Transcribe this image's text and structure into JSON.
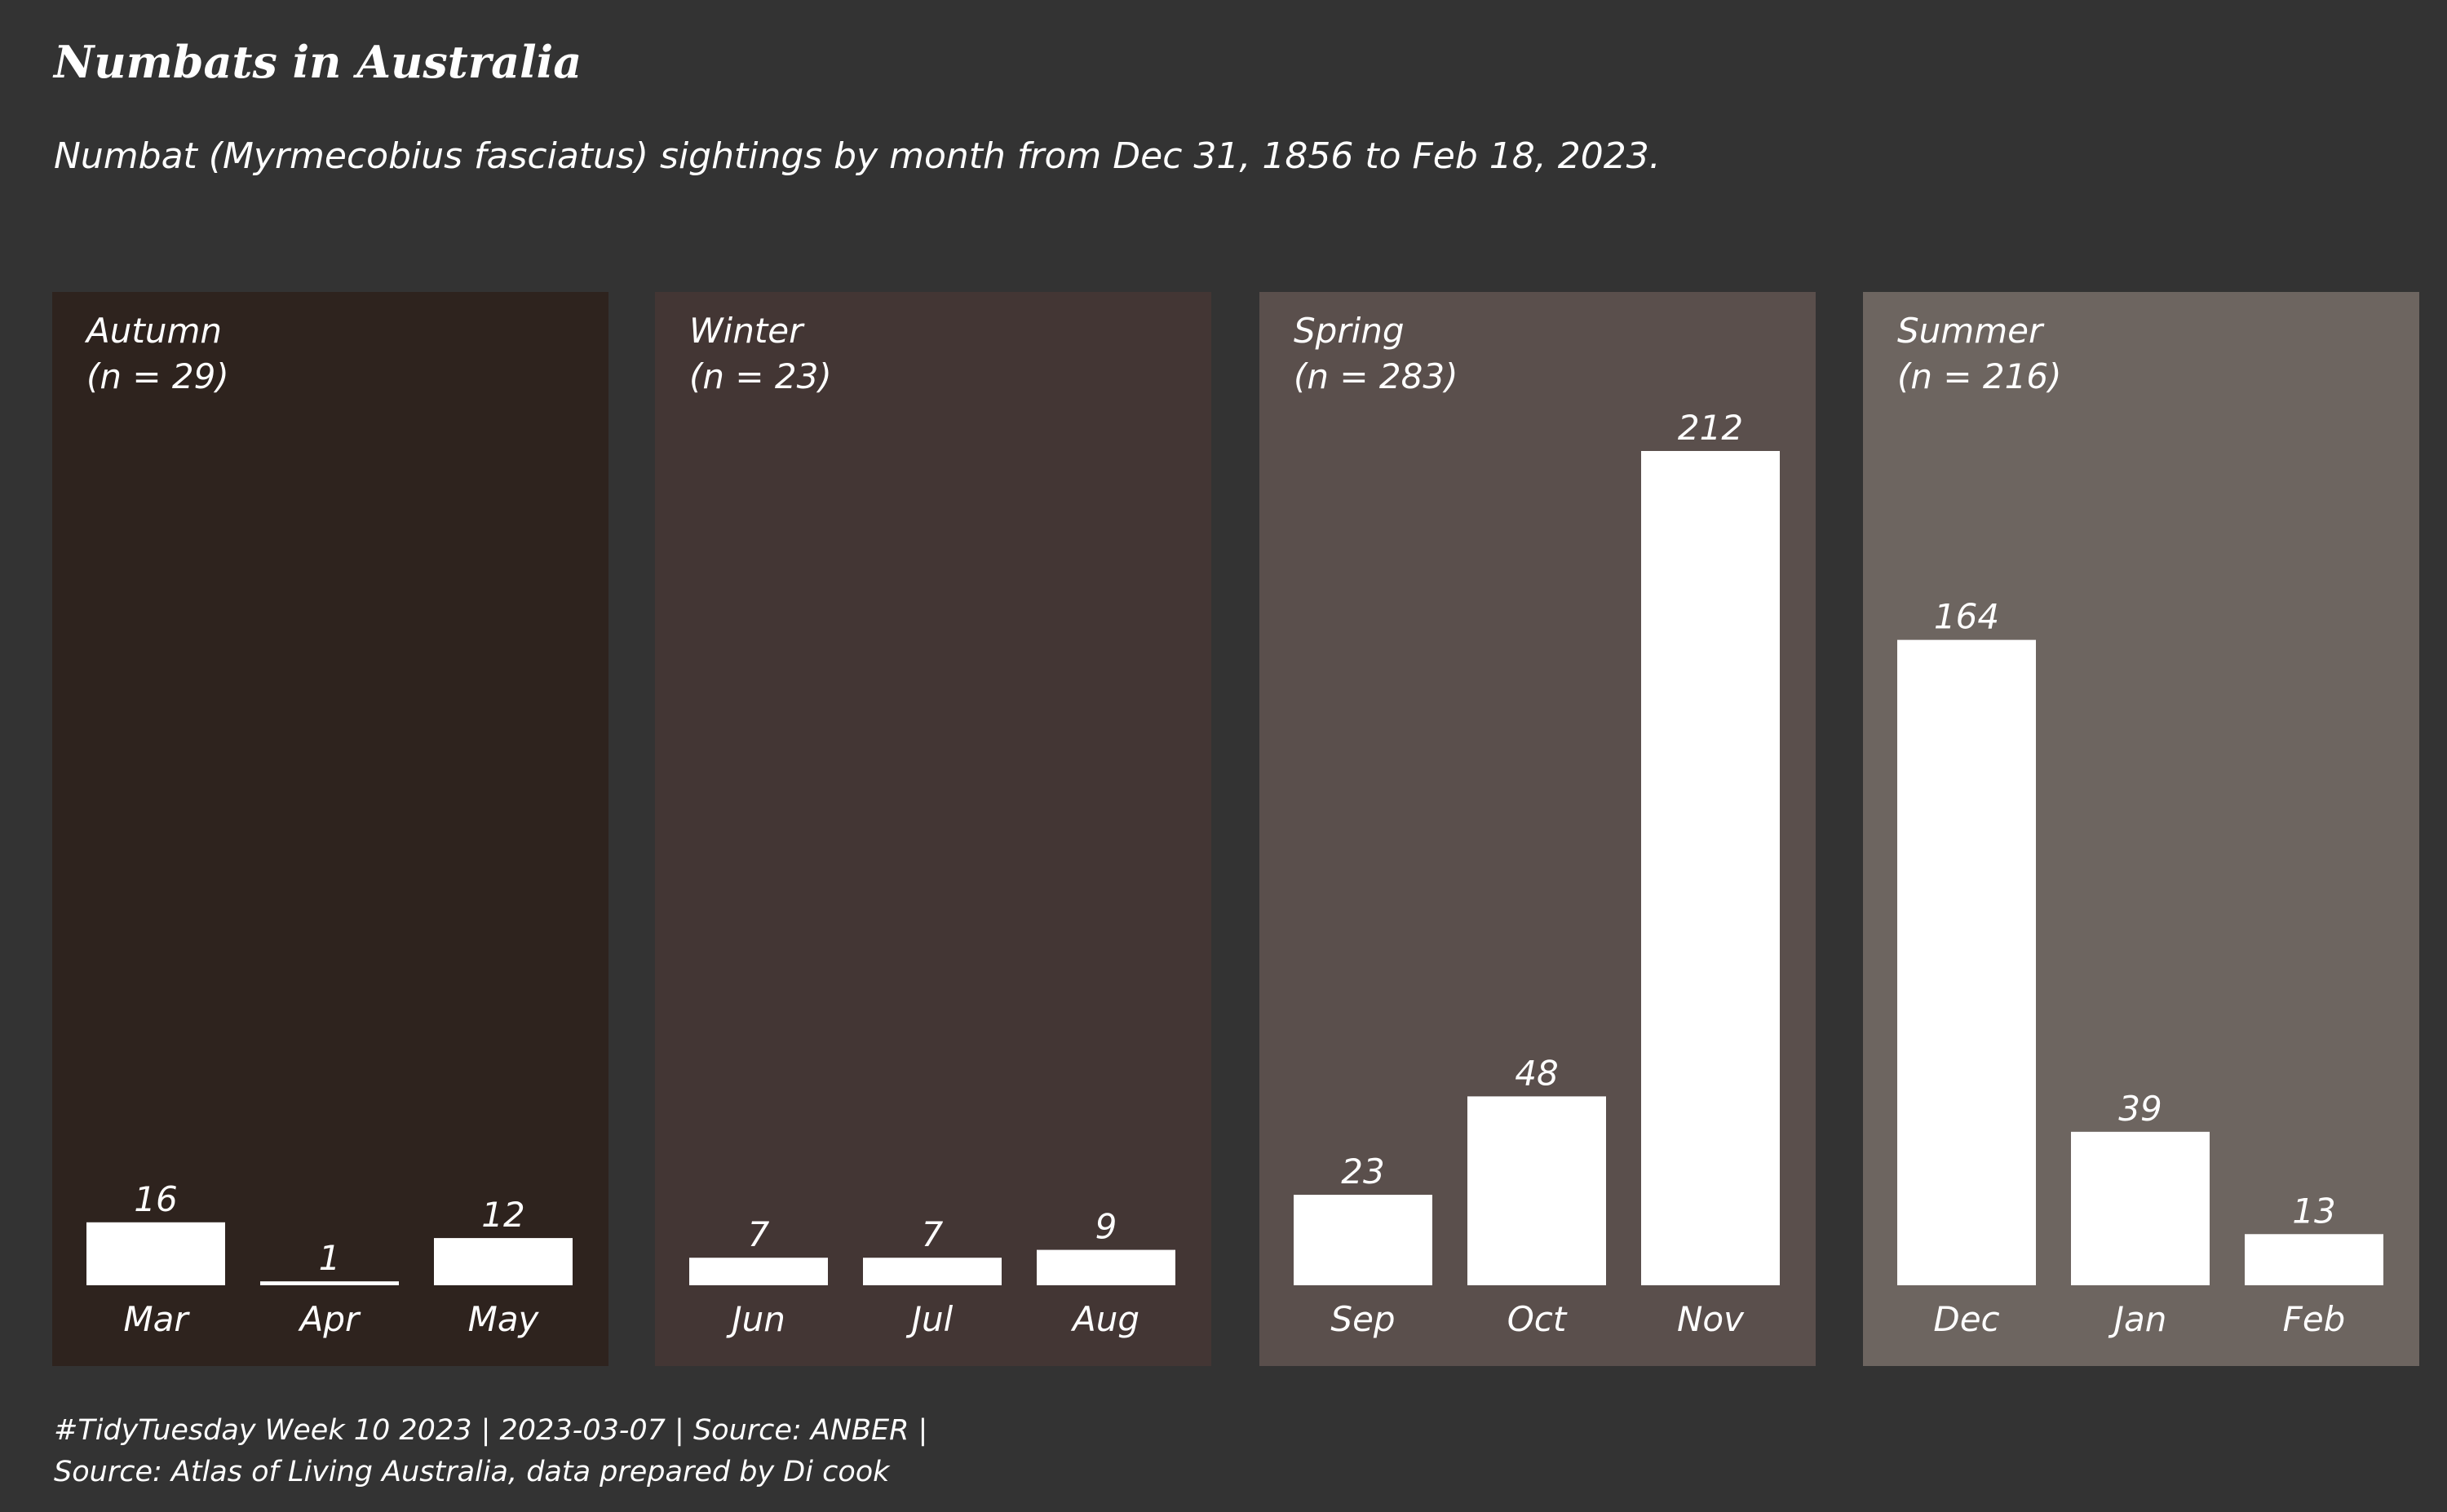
{
  "title": "Numbats in Australia",
  "subtitle": "Numbat (Myrmecobius fasciatus) sightings by month from Dec 31, 1856 to Feb 18, 2023.",
  "caption": {
    "line1": "#TidyTuesday Week 10 2023 | 2023-03-07 | Source: ANBER |",
    "line2": "Source: Atlas of Living Australia, data prepared by Di cook"
  },
  "colors": {
    "background": "#333333",
    "bar": "#ffffff",
    "text": "#ffffff"
  },
  "chart_data": {
    "type": "bar",
    "facet": "season",
    "grid": false,
    "legend": "none",
    "ylim": [
      0,
      212
    ],
    "panels": [
      {
        "name": "Autumn",
        "n_label": "(n = 29)",
        "color": "#2e231e",
        "categories": [
          "Mar",
          "Apr",
          "May"
        ],
        "values": [
          16,
          1,
          12
        ]
      },
      {
        "name": "Winter",
        "n_label": "(n = 23)",
        "color": "#433634",
        "categories": [
          "Jun",
          "Jul",
          "Aug"
        ],
        "values": [
          7,
          7,
          9
        ]
      },
      {
        "name": "Spring",
        "n_label": "(n = 283)",
        "color": "#5a4f4c",
        "categories": [
          "Sep",
          "Oct",
          "Nov"
        ],
        "values": [
          23,
          48,
          212
        ]
      },
      {
        "name": "Summer",
        "n_label": "(n = 216)",
        "color": "#6d6560",
        "categories": [
          "Dec",
          "Jan",
          "Feb"
        ],
        "values": [
          164,
          39,
          13
        ]
      }
    ]
  }
}
